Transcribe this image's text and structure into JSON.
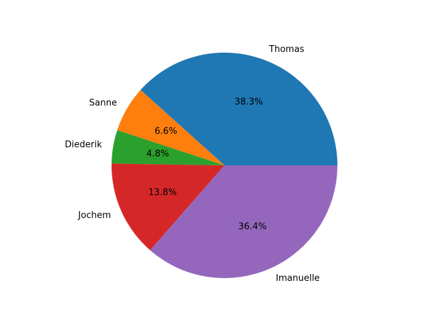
{
  "chart_data": {
    "type": "pie",
    "title": "",
    "slices": [
      {
        "label": "Thomas",
        "percent_label": "38.3%",
        "value": 38.3,
        "color": "#1f77b4"
      },
      {
        "label": "Sanne",
        "percent_label": "6.6%",
        "value": 6.6,
        "color": "#ff7f0e"
      },
      {
        "label": "Diederik",
        "percent_label": "4.8%",
        "value": 4.8,
        "color": "#2ca02c"
      },
      {
        "label": "Jochem",
        "percent_label": "13.8%",
        "value": 13.8,
        "color": "#d62728"
      },
      {
        "label": "Imanuelle",
        "percent_label": "36.4%",
        "value": 36.4,
        "color": "#9467bd"
      }
    ],
    "start_angle_deg": 0,
    "direction": "counterclockwise",
    "legend": "none"
  }
}
